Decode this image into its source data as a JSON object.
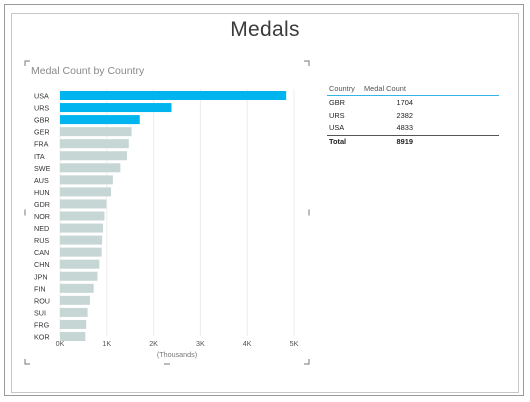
{
  "page_title": "Medals",
  "chart_title": "Medal Count by Country",
  "chart_data": {
    "type": "bar",
    "orientation": "horizontal",
    "categories": [
      "USA",
      "URS",
      "GBR",
      "GER",
      "FRA",
      "ITA",
      "SWE",
      "AUS",
      "HUN",
      "GDR",
      "NOR",
      "NED",
      "RUS",
      "CAN",
      "CHN",
      "JPN",
      "FIN",
      "ROU",
      "SUI",
      "FRG",
      "KOR"
    ],
    "values": [
      4833,
      2382,
      1704,
      1530,
      1470,
      1430,
      1290,
      1130,
      1090,
      990,
      950,
      920,
      900,
      890,
      840,
      800,
      720,
      640,
      590,
      560,
      540
    ],
    "highlighted": [
      "USA",
      "URS",
      "GBR"
    ],
    "xlim": [
      0,
      5000
    ],
    "xticks": [
      "0K",
      "1K",
      "2K",
      "3K",
      "4K",
      "5K"
    ],
    "xlabel": "(Thousands)",
    "colors": {
      "highlight": "#00b4ef",
      "normal": "#c5d6d4"
    }
  },
  "table": {
    "headers": [
      "Country",
      "Medal Count"
    ],
    "rows": [
      {
        "country": "GBR",
        "count": "1704"
      },
      {
        "country": "URS",
        "count": "2382"
      },
      {
        "country": "USA",
        "count": "4833"
      }
    ],
    "total_label": "Total",
    "total_value": "8919"
  }
}
